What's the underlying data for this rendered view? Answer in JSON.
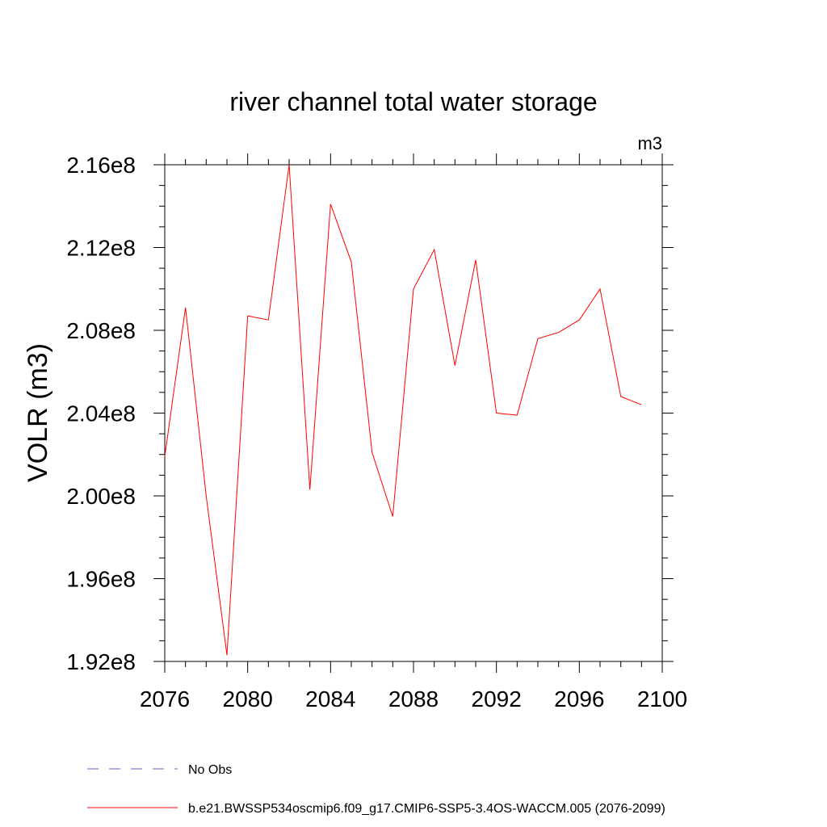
{
  "chart_data": {
    "type": "line",
    "title": "river channel total water storage",
    "units_label": "m3",
    "ylabel": "VOLR  (m3)",
    "xlabel": "",
    "xlim": [
      2076,
      2100
    ],
    "ylim": [
      192000000,
      216000000
    ],
    "x_ticks": [
      2076,
      2080,
      2084,
      2088,
      2092,
      2096,
      2100
    ],
    "x_tick_labels": [
      "2076",
      "2080",
      "2084",
      "2088",
      "2092",
      "2096",
      "2100"
    ],
    "y_ticks": [
      192000000,
      196000000,
      200000000,
      204000000,
      208000000,
      212000000,
      216000000
    ],
    "y_tick_labels": [
      "1.92e8",
      "1.96e8",
      "2.00e8",
      "2.04e8",
      "2.08e8",
      "2.12e8",
      "2.16e8"
    ],
    "grid": false,
    "legend_position": "bottom",
    "series": [
      {
        "name": "b.e21.BWSSP534oscmip6.f09_g17.CMIP6-SSP5-3.4OS-WACCM.005 (2076-2099)",
        "color": "#ff0000",
        "dash": "solid",
        "x": [
          2076,
          2077,
          2078,
          2079,
          2080,
          2081,
          2082,
          2083,
          2084,
          2085,
          2086,
          2087,
          2088,
          2089,
          2090,
          2091,
          2092,
          2093,
          2094,
          2095,
          2096,
          2097,
          2098,
          2099
        ],
        "values": [
          201900000,
          209100000,
          200000000,
          192300000,
          208700000,
          208500000,
          216000000,
          200300000,
          214100000,
          211300000,
          202100000,
          199000000,
          210000000,
          211900000,
          206300000,
          211400000,
          204000000,
          203900000,
          207600000,
          207900000,
          208500000,
          210000000,
          204800000,
          204400000
        ]
      }
    ],
    "legend": [
      {
        "label": "No Obs",
        "color": "#6a5acd",
        "dash": "dashed"
      },
      {
        "label": "b.e21.BWSSP534oscmip6.f09_g17.CMIP6-SSP5-3.4OS-WACCM.005 (2076-2099)",
        "color": "#ff0000",
        "dash": "solid"
      }
    ]
  }
}
